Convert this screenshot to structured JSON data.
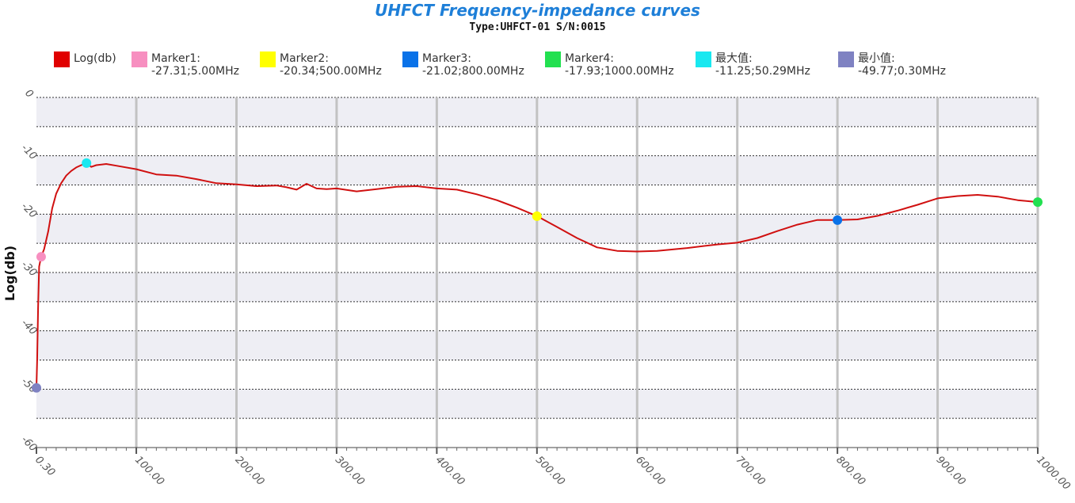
{
  "chart_data": {
    "type": "line",
    "title": "UHFCT Frequency-impedance curves",
    "subtitle": "Type:UHFCT-01  S/N:0015",
    "ylabel": "Log(db)",
    "xlabel": "",
    "xlim": [
      0.3,
      1000
    ],
    "ylim": [
      -60,
      0
    ],
    "grid": true,
    "legend_position": "top",
    "x_ticks": [
      "0.30",
      "100.00",
      "200.00",
      "300.00",
      "400.00",
      "500.00",
      "600.00",
      "700.00",
      "800.00",
      "900.00",
      "1000.00"
    ],
    "x_tick_values": [
      0.3,
      100,
      200,
      300,
      400,
      500,
      600,
      700,
      800,
      900,
      1000
    ],
    "y_ticks": [
      "0",
      "-10",
      "-20",
      "-30",
      "-40",
      "-50",
      "-60"
    ],
    "y_tick_values": [
      0,
      -10,
      -20,
      -30,
      -40,
      -50,
      -60
    ],
    "series": [
      {
        "name": "Log(db)",
        "color": "#d01010",
        "x": [
          0.3,
          1,
          2,
          3,
          5,
          8,
          12,
          16,
          20,
          25,
          30,
          35,
          40,
          45,
          50.29,
          55,
          60,
          70,
          80,
          100,
          120,
          140,
          160,
          180,
          200,
          220,
          240,
          250,
          260,
          270,
          280,
          290,
          300,
          320,
          340,
          360,
          380,
          400,
          420,
          440,
          460,
          480,
          500,
          520,
          540,
          560,
          580,
          600,
          620,
          650,
          680,
          700,
          720,
          740,
          760,
          780,
          800,
          820,
          840,
          860,
          880,
          900,
          920,
          940,
          960,
          980,
          1000
        ],
        "y": [
          -49.77,
          -45,
          -36,
          -29,
          -27.31,
          -26,
          -23,
          -19,
          -16.5,
          -14.7,
          -13.4,
          -12.6,
          -12,
          -11.6,
          -11.25,
          -11.9,
          -11.6,
          -11.4,
          -11.7,
          -12.3,
          -13.2,
          -13.4,
          -14,
          -14.7,
          -14.9,
          -15.2,
          -15.1,
          -15.4,
          -15.8,
          -14.8,
          -15.6,
          -15.7,
          -15.6,
          -16.1,
          -15.7,
          -15.3,
          -15.2,
          -15.6,
          -15.8,
          -16.6,
          -17.6,
          -18.9,
          -20.34,
          -22.2,
          -24.1,
          -25.7,
          -26.3,
          -26.4,
          -26.3,
          -25.8,
          -25.2,
          -24.9,
          -24.1,
          -22.9,
          -21.8,
          -21,
          -21.02,
          -20.9,
          -20.3,
          -19.4,
          -18.4,
          -17.3,
          -16.9,
          -16.7,
          -17.0,
          -17.6,
          -17.93
        ]
      }
    ],
    "markers": [
      {
        "name": "Marker1",
        "x": 5.0,
        "y": -27.31,
        "color": "#f78fc0"
      },
      {
        "name": "Marker2",
        "x": 500.0,
        "y": -20.34,
        "color": "#ffff00"
      },
      {
        "name": "Marker3",
        "x": 800.0,
        "y": -21.02,
        "color": "#0a72e8"
      },
      {
        "name": "Marker4",
        "x": 1000.0,
        "y": -17.93,
        "color": "#22e050"
      },
      {
        "name": "最大值",
        "x": 50.29,
        "y": -11.25,
        "color": "#19e8f0"
      },
      {
        "name": "最小值",
        "x": 0.3,
        "y": -49.77,
        "color": "#7f82c2"
      }
    ],
    "legend": [
      {
        "label": "Log(db)",
        "value": "",
        "color": "#e00000"
      },
      {
        "label": "Marker1:",
        "value": "-27.31;5.00MHz",
        "color": "#f78fc0"
      },
      {
        "label": "Marker2:",
        "value": "-20.34;500.00MHz",
        "color": "#ffff00"
      },
      {
        "label": "Marker3:",
        "value": "-21.02;800.00MHz",
        "color": "#0a72e8"
      },
      {
        "label": "Marker4:",
        "value": "-17.93;1000.00MHz",
        "color": "#22e050"
      },
      {
        "label": "最大值:",
        "value": "-11.25;50.29MHz",
        "color": "#19e8f0"
      },
      {
        "label": "最小值:",
        "value": "-49.77;0.30MHz",
        "color": "#7f82c2"
      }
    ]
  }
}
